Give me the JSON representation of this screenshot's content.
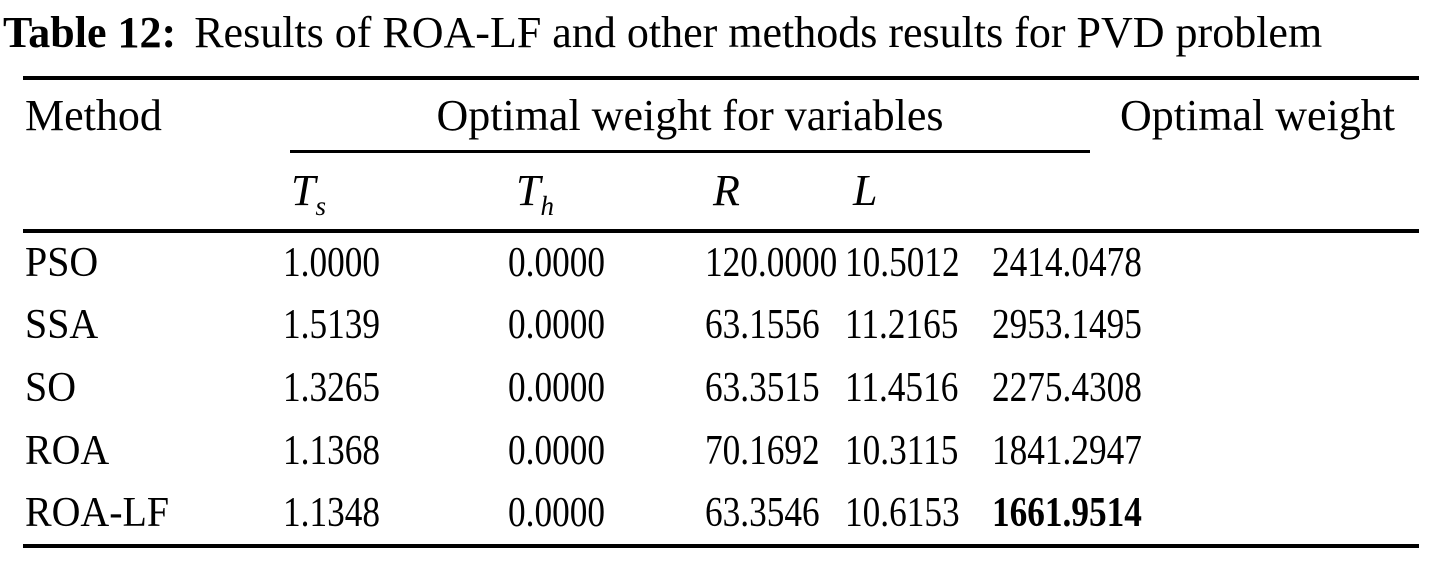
{
  "caption": {
    "label": "Table 12:",
    "text": "Results of ROA-LF and other methods results for PVD problem"
  },
  "table": {
    "headers": {
      "method": "Method",
      "group": "Optimal weight for variables",
      "optimal_weight": "Optimal weight"
    },
    "variables": [
      {
        "base": "T",
        "sub": "s"
      },
      {
        "base": "T",
        "sub": "h"
      },
      {
        "base": "R",
        "sub": ""
      },
      {
        "base": "L",
        "sub": ""
      }
    ],
    "rows": [
      {
        "method": "PSO",
        "ts": "1.0000",
        "th": "0.0000",
        "r": "120.0000",
        "l": "10.5012",
        "weight": "2414.0478",
        "best": false
      },
      {
        "method": "SSA",
        "ts": "1.5139",
        "th": "0.0000",
        "r": "63.1556",
        "l": "11.2165",
        "weight": "2953.1495",
        "best": false
      },
      {
        "method": "SO",
        "ts": "1.3265",
        "th": "0.0000",
        "r": "63.3515",
        "l": "11.4516",
        "weight": "2275.4308",
        "best": false
      },
      {
        "method": "ROA",
        "ts": "1.1368",
        "th": "0.0000",
        "r": "70.1692",
        "l": "10.3115",
        "weight": "1841.2947",
        "best": false
      },
      {
        "method": "ROA-LF",
        "ts": "1.1348",
        "th": "0.0000",
        "r": "63.3546",
        "l": "10.6153",
        "weight": "1661.9514",
        "best": true
      }
    ],
    "colors": {
      "text": "#000000",
      "background": "#ffffff",
      "rule": "#000000"
    }
  }
}
